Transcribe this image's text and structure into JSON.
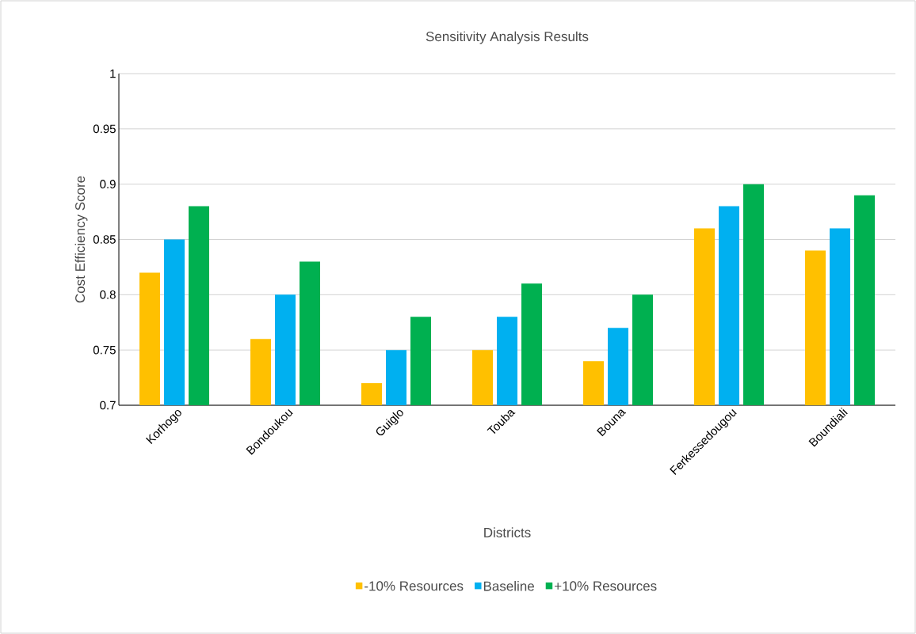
{
  "chart_data": {
    "type": "bar",
    "title": "Sensitivity Analysis Results",
    "xlabel": "Districts",
    "ylabel": "Cost Efficiency Score",
    "categories": [
      "Korhogo",
      "Bondoukou",
      "Guiglo",
      "Touba",
      "Bouna",
      "Ferkessedougou",
      "Boundiali"
    ],
    "series": [
      {
        "name": "-10% Resources",
        "color": "#ffc000",
        "values": [
          0.82,
          0.76,
          0.72,
          0.75,
          0.74,
          0.86,
          0.84
        ]
      },
      {
        "name": "Baseline",
        "color": "#00b0f0",
        "values": [
          0.85,
          0.8,
          0.75,
          0.78,
          0.77,
          0.88,
          0.86
        ]
      },
      {
        "name": "+10% Resources",
        "color": "#00b050",
        "values": [
          0.88,
          0.83,
          0.78,
          0.81,
          0.8,
          0.9,
          0.89
        ]
      }
    ],
    "ylim": [
      0.7,
      1
    ],
    "yticks": [
      0.7,
      0.75,
      0.8,
      0.85,
      0.9,
      0.95,
      1
    ],
    "grid": "y",
    "legend": "bottom"
  }
}
